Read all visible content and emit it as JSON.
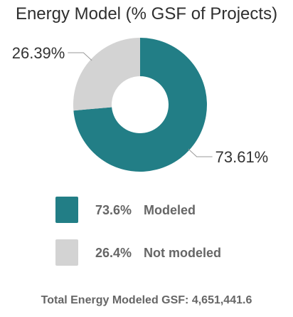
{
  "chart_data": {
    "type": "pie",
    "title": "Energy Model (% GSF of Projects)",
    "donut": true,
    "slices": [
      {
        "label": "Modeled",
        "value": 73.61,
        "slice_label": "73.61%",
        "legend_pct": "73.6%",
        "color": "#227e86"
      },
      {
        "label": "Not modeled",
        "value": 26.39,
        "slice_label": "26.39%",
        "legend_pct": "26.4%",
        "color": "#d3d3d3"
      }
    ],
    "legend_placement": "bottom"
  },
  "footer": {
    "text": "Total Energy Modeled GSF: 4,651,441.6"
  }
}
